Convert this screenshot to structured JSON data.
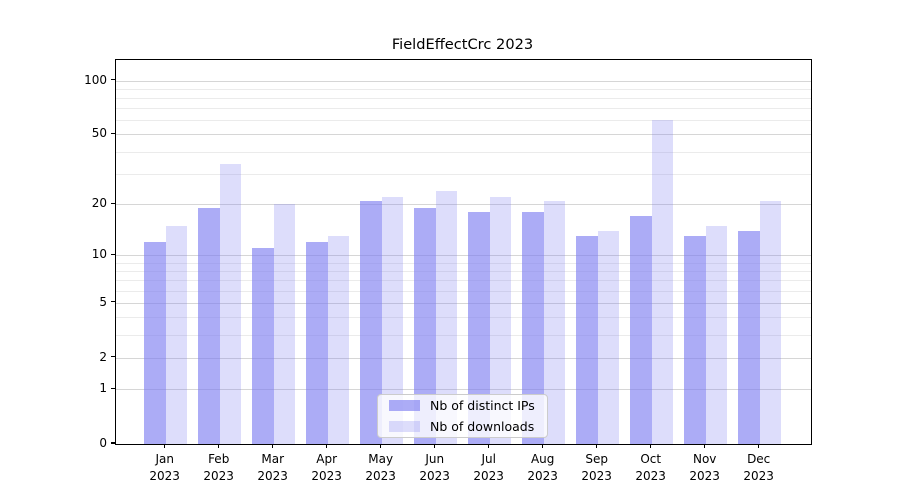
{
  "chart_data": {
    "type": "bar",
    "title": "FieldEffectCrc 2023",
    "categories": [
      "Jan",
      "Feb",
      "Mar",
      "Apr",
      "May",
      "Jun",
      "Jul",
      "Aug",
      "Sep",
      "Oct",
      "Nov",
      "Dec"
    ],
    "year_label": "2023",
    "series": [
      {
        "name": "Nb of distinct IPs",
        "color": "rgba(124,124,241,0.63)",
        "values": [
          12,
          19,
          11,
          12,
          21,
          19,
          18,
          18,
          13,
          17,
          13,
          14
        ]
      },
      {
        "name": "Nb of downloads",
        "color": "rgba(124,124,241,0.26)",
        "values": [
          15,
          34,
          20,
          13,
          22,
          24,
          22,
          21,
          14,
          60,
          15,
          21
        ]
      }
    ],
    "yscale": "log1p",
    "ylim": [
      0,
      129
    ],
    "yticks_major": [
      0,
      1,
      2,
      5,
      10,
      20,
      50,
      100
    ],
    "yticks_minor": [
      3,
      4,
      6,
      7,
      8,
      9,
      30,
      40,
      60,
      70,
      80,
      90
    ],
    "grid": true,
    "legend_position": "lower-center-inside",
    "colors": {
      "grid_major": "#d6d6d6",
      "grid_minor": "#ebebeb",
      "axis": "#000000",
      "text": "#000000"
    }
  }
}
